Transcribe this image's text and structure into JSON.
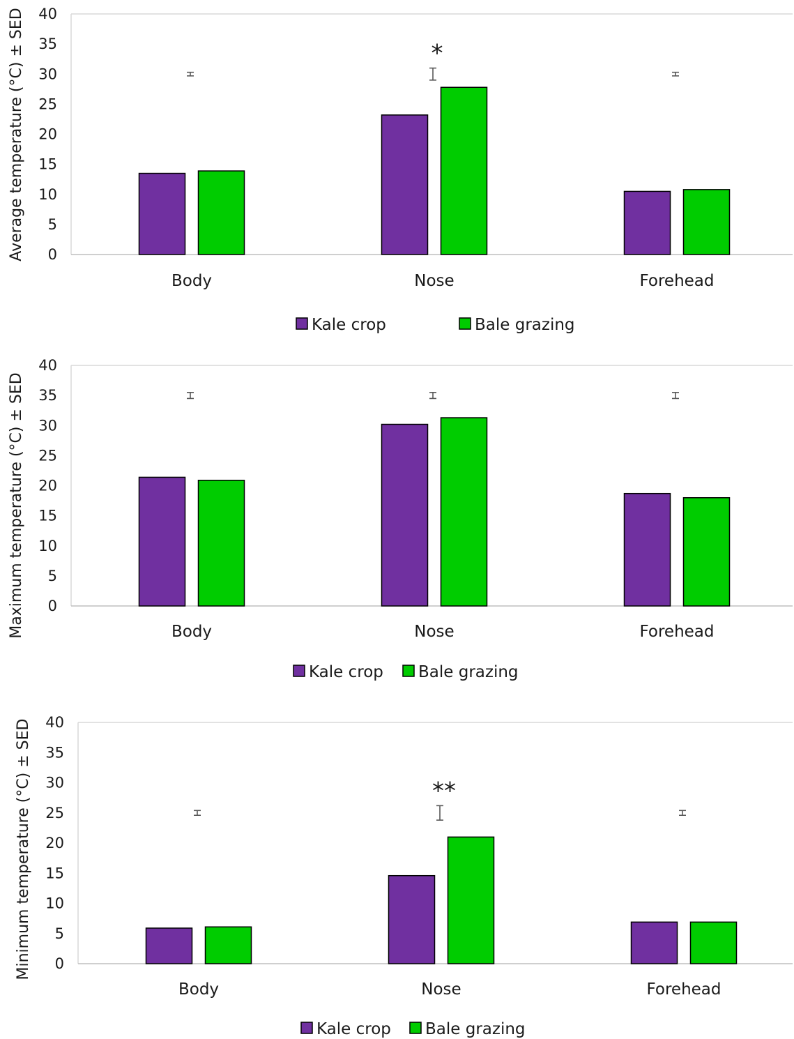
{
  "chart_data": [
    {
      "type": "bar",
      "ylabel": "Average temperature (°C) ± SED",
      "ylim": [
        0,
        40
      ],
      "yticks": [
        "0",
        "5",
        "10",
        "15",
        "20",
        "25",
        "30",
        "35",
        "40"
      ],
      "categories": [
        "Body",
        "Nose",
        "Forehead"
      ],
      "series": [
        {
          "name": "Kale crop",
          "color": "#7030a0",
          "values": [
            13.5,
            23.2,
            10.5
          ]
        },
        {
          "name": "Bale grazing",
          "color": "#00cc00",
          "values": [
            13.9,
            27.8,
            10.8
          ]
        }
      ],
      "sed": [
        0.3,
        1.0,
        0.3
      ],
      "sed_center": [
        30,
        30,
        30
      ],
      "significance": [
        "",
        "*",
        ""
      ],
      "legend": "bottom",
      "grid": false
    },
    {
      "type": "bar",
      "ylabel": "Maximum temperature (°C) ± SED",
      "ylim": [
        0,
        40
      ],
      "yticks": [
        "0",
        "5",
        "10",
        "15",
        "20",
        "25",
        "30",
        "35",
        "40"
      ],
      "categories": [
        "Body",
        "Nose",
        "Forehead"
      ],
      "series": [
        {
          "name": "Kale crop",
          "color": "#7030a0",
          "values": [
            21.4,
            30.2,
            18.7
          ]
        },
        {
          "name": "Bale grazing",
          "color": "#00cc00",
          "values": [
            20.9,
            31.3,
            18.0
          ]
        }
      ],
      "sed": [
        0.5,
        0.5,
        0.5
      ],
      "sed_center": [
        35,
        35,
        35
      ],
      "significance": [
        "",
        "",
        ""
      ],
      "legend": "bottom",
      "grid": false
    },
    {
      "type": "bar",
      "ylabel": "Minimum temperature (°C) ± SED",
      "ylim": [
        0,
        40
      ],
      "yticks": [
        "0",
        "5",
        "10",
        "15",
        "20",
        "25",
        "30",
        "35",
        "40"
      ],
      "categories": [
        "Body",
        "Nose",
        "Forehead"
      ],
      "series": [
        {
          "name": "Kale crop",
          "color": "#7030a0",
          "values": [
            5.9,
            14.6,
            6.9
          ]
        },
        {
          "name": "Bale grazing",
          "color": "#00cc00",
          "values": [
            6.1,
            21.0,
            6.9
          ]
        }
      ],
      "sed": [
        0.4,
        1.2,
        0.4
      ],
      "sed_center": [
        25,
        25,
        25
      ],
      "significance": [
        "",
        "**",
        ""
      ],
      "legend": "bottom",
      "grid": false
    }
  ]
}
